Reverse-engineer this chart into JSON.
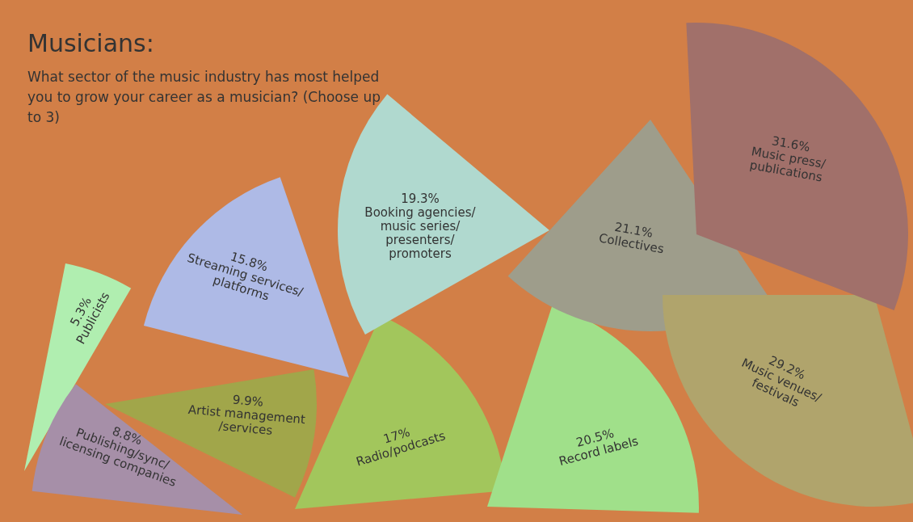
{
  "chart_data": {
    "type": "other",
    "title": "Musicians:",
    "subtitle": "What sector of the music industry has most helped you to grow your career as a musician? (Choose up to 3)",
    "categories": [
      "Publicists",
      "Publishing/sync/licensing companies",
      "Artist management /services",
      "Streaming services/ platforms",
      "Radio/podcasts",
      "Booking agencies/music series/presenters/promoters",
      "Record labels",
      "Collectives",
      "Music venues/ festivals",
      "Music press/ publications"
    ],
    "values": [
      5.3,
      8.8,
      9.9,
      15.8,
      17,
      19.3,
      20.5,
      21.1,
      29.2,
      31.6
    ],
    "value_labels": [
      "5.3%",
      "8.8%",
      "9.9%",
      "15.8%",
      "17%",
      "19.3%",
      "20.5%",
      "21.1%",
      "29.2%",
      "31.6%"
    ],
    "colors": [
      "#b0eeb0",
      "#a68fa8",
      "#a1a64a",
      "#aebae6",
      "#a2c65c",
      "#b0d9cf",
      "#a0e08a",
      "#9e9d8b",
      "#b0a46c",
      "#a1706a"
    ]
  }
}
